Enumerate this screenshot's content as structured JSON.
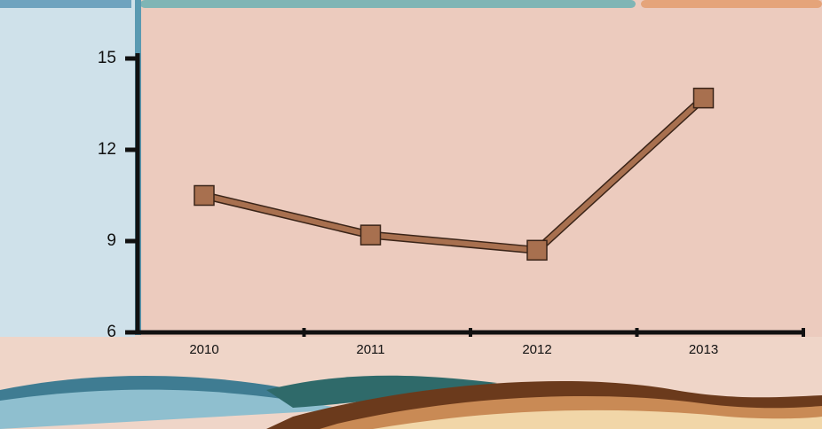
{
  "chart_data": {
    "type": "line",
    "categories": [
      "2010",
      "2011",
      "2012",
      "2013"
    ],
    "values": [
      10.5,
      9.2,
      8.7,
      13.7
    ],
    "color": "#a8704f",
    "ylim": [
      6,
      15
    ],
    "yticks": [
      6,
      9,
      12,
      15
    ]
  }
}
